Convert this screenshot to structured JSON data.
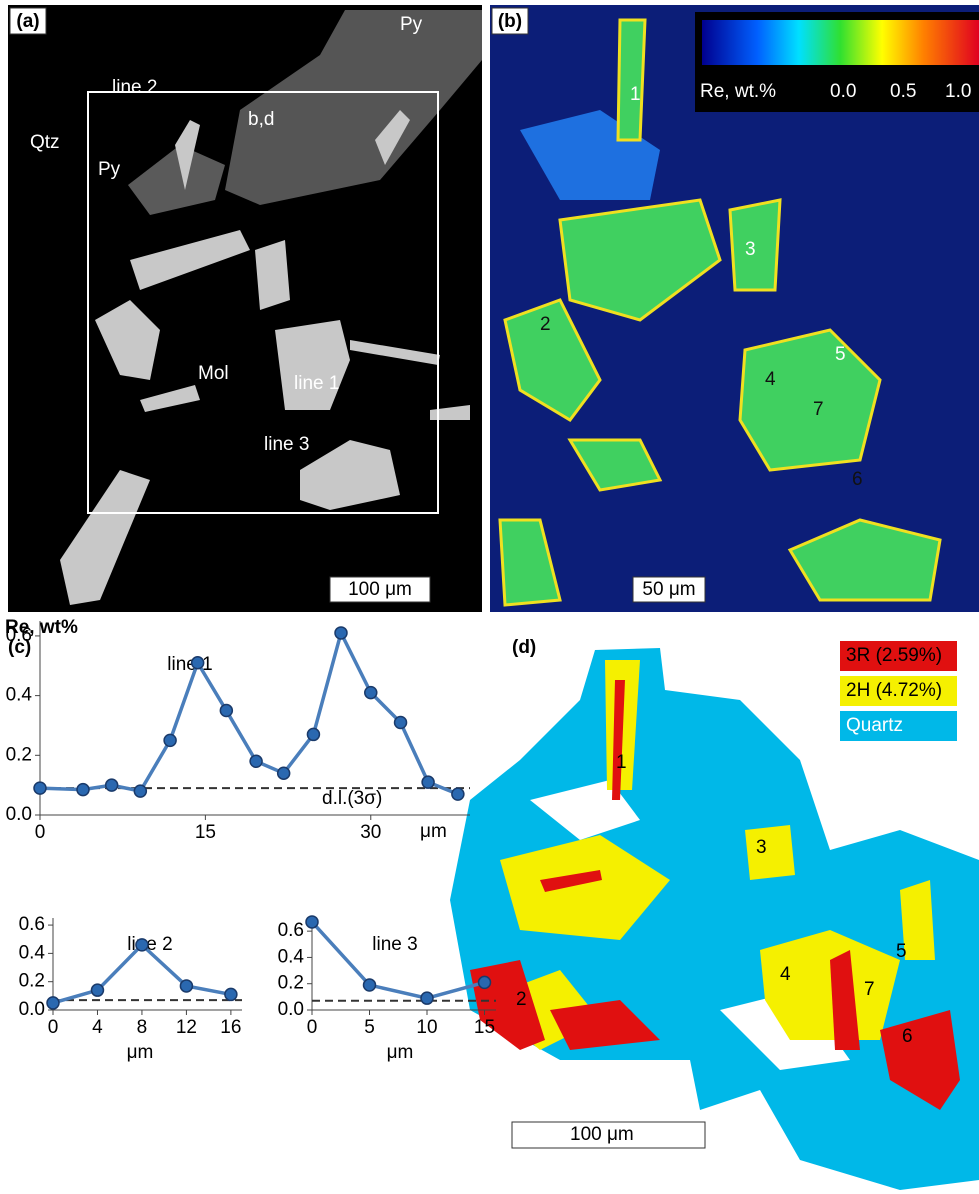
{
  "panels": {
    "a": {
      "label": "(a)",
      "py_top": "Py",
      "qtz": "Qtz",
      "line2": "line 2",
      "bd": "b,d",
      "py_left": "Py",
      "mol": "Mol",
      "line1": "line 1",
      "line3": "line 3",
      "scale": "100 μm"
    },
    "b": {
      "label": "(b)",
      "colorbar_title": "Re, wt.%",
      "colorbar_ticks": [
        "0.0",
        "0.5",
        "1.0"
      ],
      "spots": [
        "1",
        "2",
        "3",
        "4",
        "5",
        "6",
        "7"
      ],
      "scale": "50 μm"
    },
    "c": {
      "label": "(c)"
    },
    "d": {
      "label": "(d)",
      "legend": [
        "3R (2.59%)",
        "2H (4.72%)",
        "Quartz"
      ],
      "spots": [
        "1",
        "2",
        "3",
        "4",
        "5",
        "6",
        "7"
      ],
      "scale": "100 μm"
    }
  },
  "chart_data": [
    {
      "type": "line",
      "title": "line 1",
      "y_label": "Re, wt%",
      "x_label": "μm",
      "annotation": "d.l.(3σ)",
      "x": [
        0,
        3.9,
        6.5,
        9.1,
        11.8,
        14.3,
        16.9,
        19.6,
        22.1,
        24.8,
        27.3,
        30,
        32.7,
        35.2,
        37.9
      ],
      "values": [
        0.09,
        0.085,
        0.1,
        0.08,
        0.25,
        0.51,
        0.35,
        0.18,
        0.14,
        0.27,
        0.61,
        0.41,
        0.31,
        0.11,
        0.07
      ],
      "detection_limit": 0.09,
      "color": "#4a7ebb",
      "xlim": [
        0,
        39
      ],
      "xticks": [
        0,
        15,
        30
      ],
      "ylim": [
        0,
        0.65
      ],
      "yticks": [
        {
          "value": 0,
          "label": "0.0"
        },
        0.2,
        0.4,
        0.6
      ]
    },
    {
      "type": "line",
      "title": "line 2",
      "x_label": "μm",
      "x": [
        0,
        4,
        8,
        12,
        16
      ],
      "values": [
        0.05,
        0.14,
        0.46,
        0.17,
        0.11
      ],
      "detection_limit": 0.07,
      "color": "#4a7ebb",
      "xlim": [
        0,
        17
      ],
      "xticks": [
        0,
        4,
        8,
        12,
        16
      ],
      "ylim": [
        0,
        0.65
      ],
      "yticks": [
        {
          "value": 0,
          "label": "0.0"
        },
        0.2,
        0.4,
        0.6
      ]
    },
    {
      "type": "line",
      "title": "line 3",
      "x_label": "μm",
      "x": [
        0,
        5,
        10,
        15
      ],
      "values": [
        0.67,
        0.19,
        0.09,
        0.21
      ],
      "detection_limit": 0.07,
      "color": "#4a7ebb",
      "xlim": [
        0,
        16
      ],
      "xticks": [
        0,
        5,
        10,
        15
      ],
      "ylim": [
        0,
        0.7
      ],
      "yticks": [
        {
          "value": 0,
          "label": "0.0"
        },
        0.2,
        0.4,
        0.6
      ]
    }
  ]
}
